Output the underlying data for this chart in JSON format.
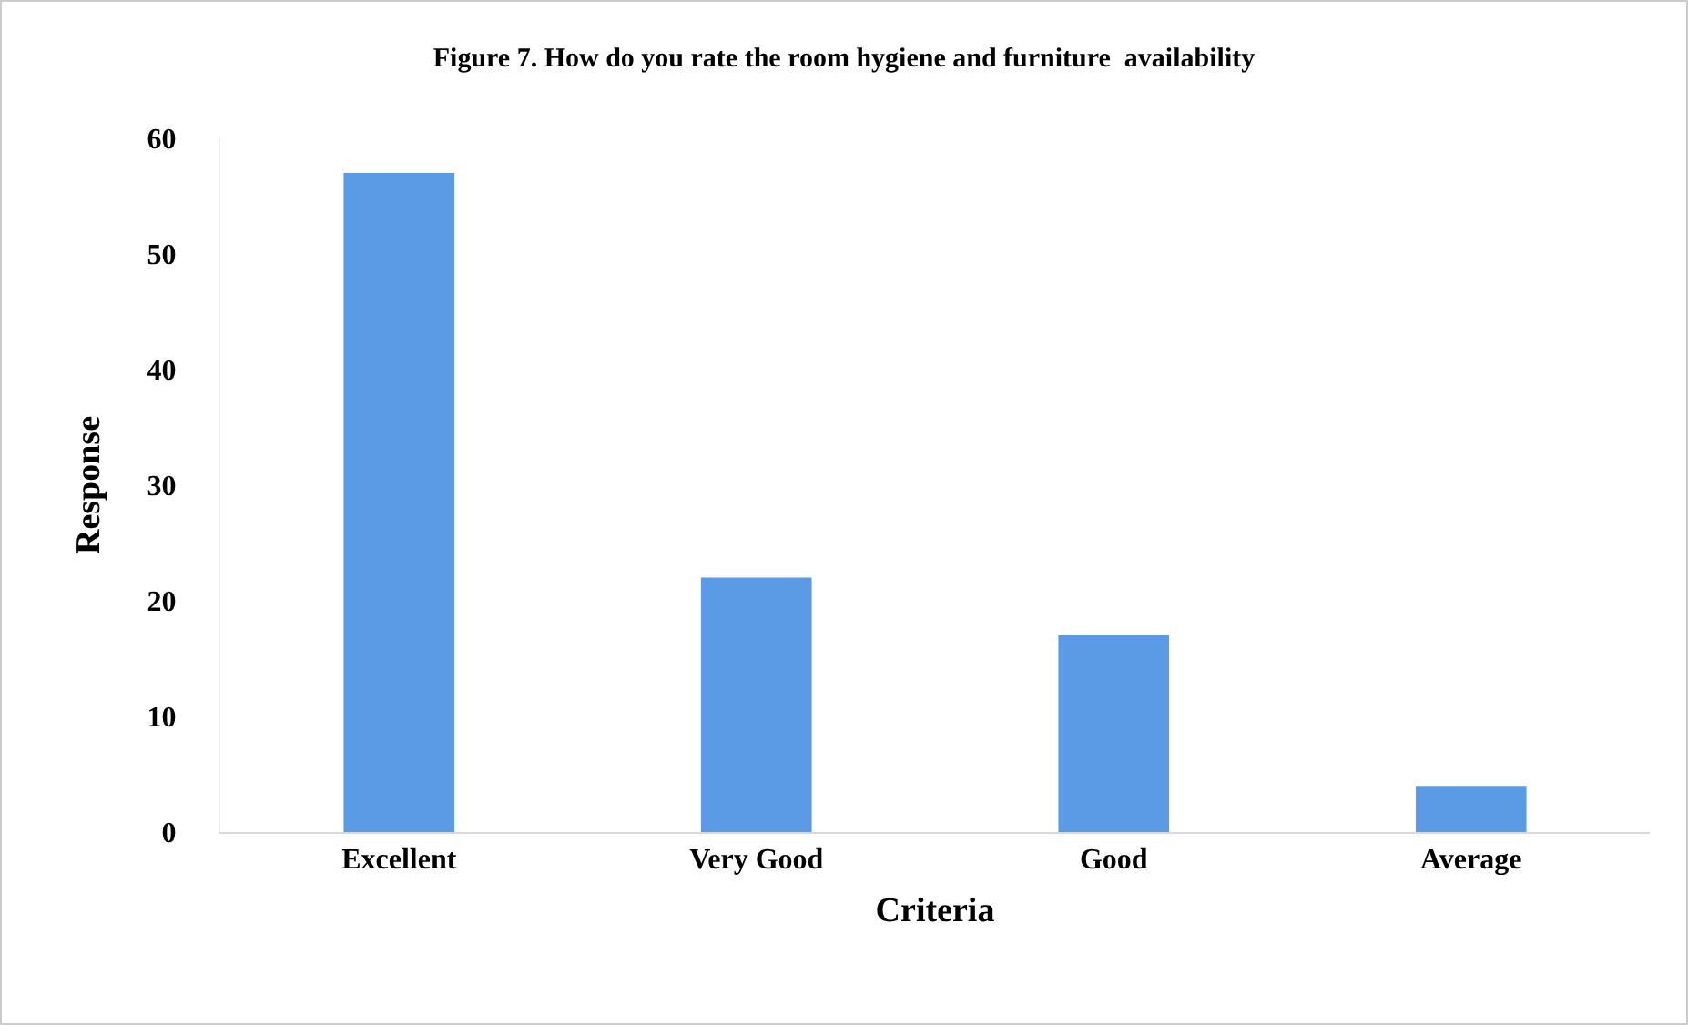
{
  "chart_data": {
    "type": "bar",
    "title": "Figure 7. How do you rate the room hygiene and furniture  availability",
    "xlabel": "Criteria",
    "ylabel": "Response",
    "categories": [
      "Excellent",
      "Very Good",
      "Good",
      "Average"
    ],
    "values": [
      57,
      22,
      17,
      4
    ],
    "color": "#5b9be6",
    "ylim": [
      0,
      60
    ],
    "yticks": [
      0,
      10,
      20,
      30,
      40,
      50,
      60
    ],
    "grid": false
  }
}
